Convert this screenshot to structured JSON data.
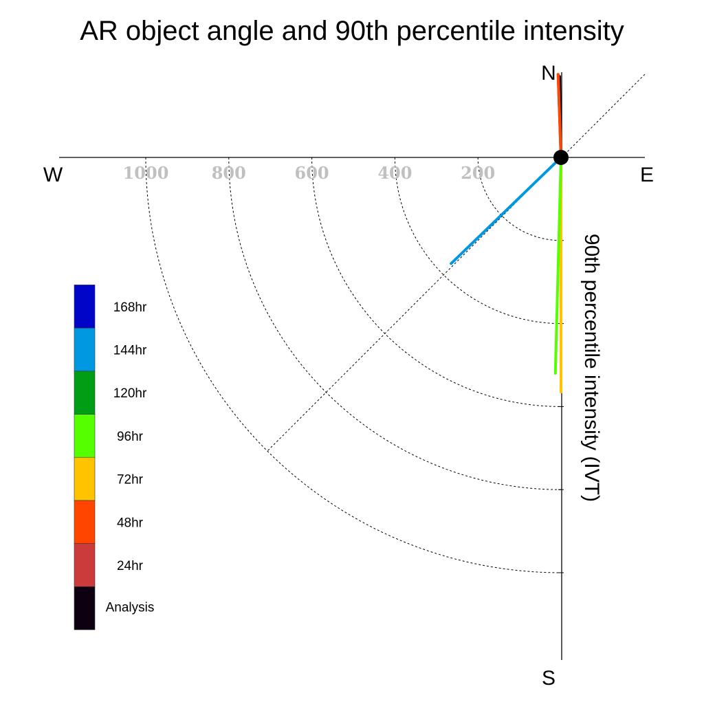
{
  "chart_data": {
    "type": "polar-vector",
    "title": "AR object angle and 90th percentile intensity",
    "ylabel": "90th percentile intensity (IVT)",
    "compass": {
      "north": "N",
      "south": "S",
      "east": "E",
      "west": "W"
    },
    "radial_ticks": [
      {
        "value": 200,
        "label": "200"
      },
      {
        "value": 400,
        "label": "400"
      },
      {
        "value": 600,
        "label": "600"
      },
      {
        "value": 800,
        "label": "800"
      },
      {
        "value": 1000,
        "label": "1000"
      }
    ],
    "rlim": [
      0,
      1200
    ],
    "grid": true,
    "legend_placement": "left",
    "series": [
      {
        "name": "Analysis",
        "color": "#0d0010",
        "bearing_deg": 359,
        "magnitude": 195
      },
      {
        "name": "24hr",
        "color": "#cc3b3b",
        "bearing_deg": 358,
        "magnitude": 200
      },
      {
        "name": "48hr",
        "color": "#ff4500",
        "bearing_deg": 358,
        "magnitude": 200
      },
      {
        "name": "72hr",
        "color": "#ffc300",
        "bearing_deg": 180,
        "magnitude": 565
      },
      {
        "name": "96hr",
        "color": "#55ff00",
        "bearing_deg": 181.5,
        "magnitude": 520
      },
      {
        "name": "120hr",
        "color": "#009e14",
        "bearing_deg": 180,
        "magnitude": 0
      },
      {
        "name": "144hr",
        "color": "#0098e0",
        "bearing_deg": 226,
        "magnitude": 368
      },
      {
        "name": "168hr",
        "color": "#0005c8",
        "bearing_deg": 0,
        "magnitude": 0
      }
    ]
  }
}
